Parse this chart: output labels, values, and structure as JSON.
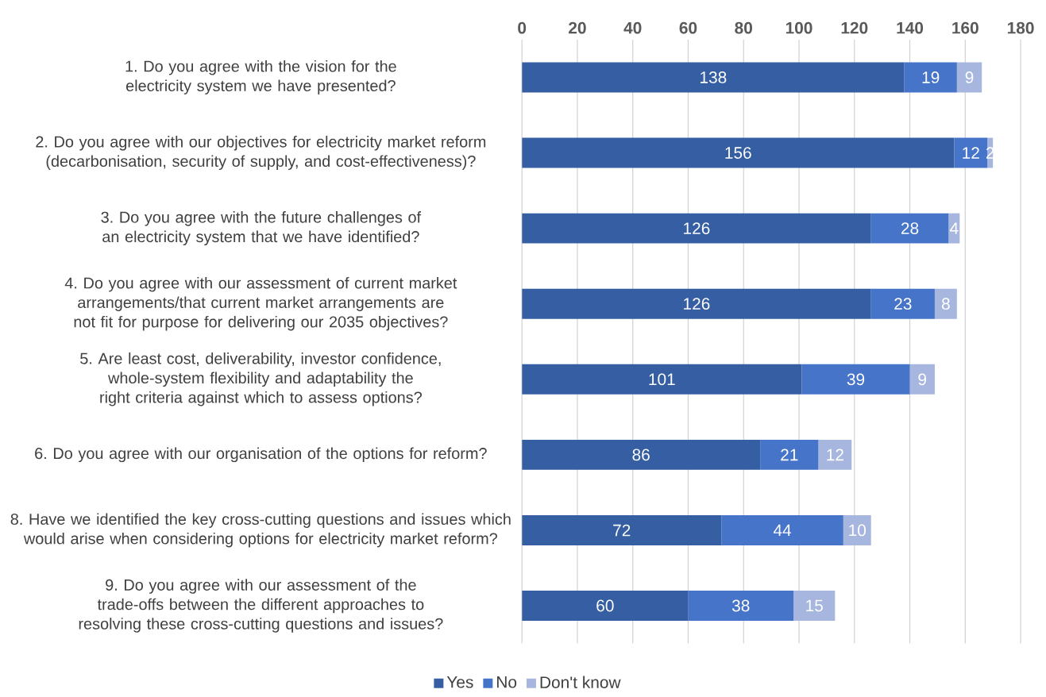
{
  "chart_data": {
    "type": "bar",
    "orientation": "horizontal",
    "stacked": true,
    "categories": [
      "1. Do you agree with the vision for the electricity system we have presented?",
      "2. Do you agree with our objectives for electricity market reform (decarbonisation, security of supply, and cost-effectiveness)?",
      "3. Do you agree with the future challenges of an electricity system that we have identified?",
      "4. Do you agree with our assessment of current market arrangements/that current market arrangements are not fit for purpose for delivering our 2035 objectives?",
      "5. Are least cost, deliverability, investor confidence, whole-system flexibility and adaptability the right criteria against which to assess options?",
      "6. Do you agree with our organisation of the options for reform?",
      "8. Have we identified the key cross-cutting questions and issues which would arise when considering options for electricity market reform?",
      "9. Do you agree with our assessment of the trade-offs between the different approaches to resolving these cross-cutting questions and issues?"
    ],
    "series": [
      {
        "name": "Yes",
        "color": "#355ea3",
        "values": [
          138,
          156,
          126,
          126,
          101,
          86,
          72,
          60
        ]
      },
      {
        "name": "No",
        "color": "#4674c8",
        "values": [
          19,
          12,
          28,
          23,
          39,
          21,
          44,
          38
        ]
      },
      {
        "name": "Don't know",
        "color": "#a7b6de",
        "values": [
          9,
          2,
          4,
          8,
          9,
          12,
          10,
          15
        ]
      }
    ],
    "xlim": [
      0,
      180
    ],
    "xticks": [
      0,
      20,
      40,
      60,
      80,
      100,
      120,
      140,
      160,
      180
    ],
    "grid": "x",
    "legend": "bottom",
    "data_labels": true
  }
}
